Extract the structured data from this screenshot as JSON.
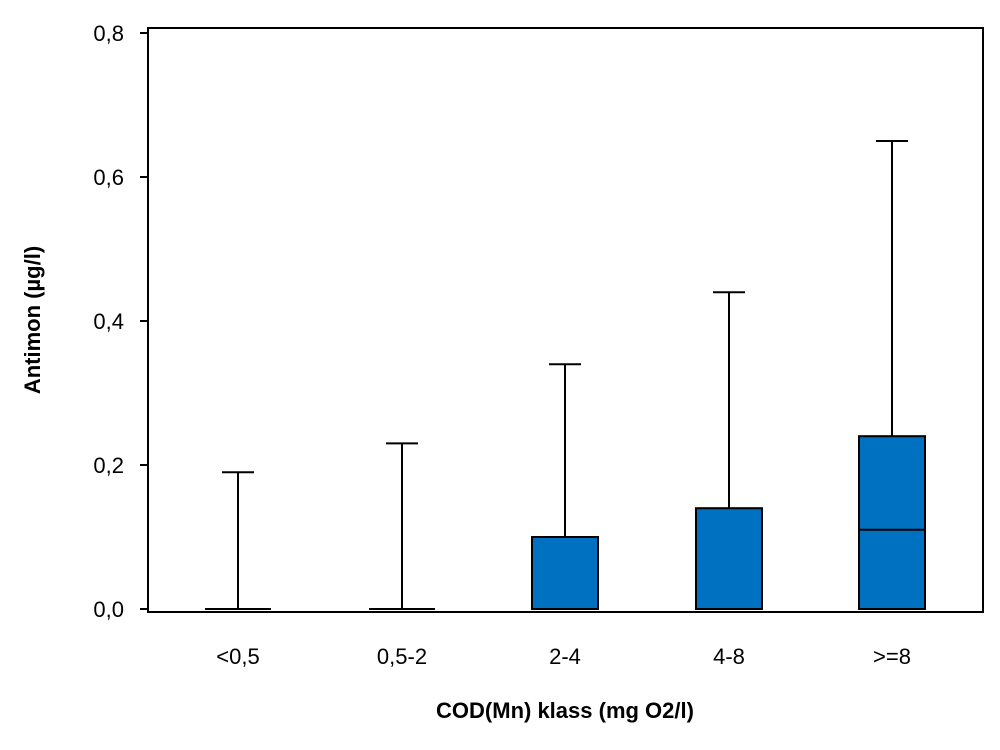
{
  "chart_data": {
    "type": "boxplot",
    "xlabel": "COD(Mn) klass (mg O2/l)",
    "ylabel": "Antimon (µg/l)",
    "ylim": [
      0,
      0.8
    ],
    "yticks": [
      0.0,
      0.2,
      0.4,
      0.6,
      0.8
    ],
    "ytick_labels": [
      "0,0",
      "0,2",
      "0,4",
      "0,6",
      "0,8"
    ],
    "categories": [
      "<0,5",
      "0,5-2",
      "2-4",
      "4-8",
      ">=8"
    ],
    "boxes": [
      {
        "category": "<0,5",
        "min": 0,
        "q1": 0,
        "median": 0,
        "q3": 0,
        "max": 0.19
      },
      {
        "category": "0,5-2",
        "min": 0,
        "q1": 0,
        "median": 0,
        "q3": 0,
        "max": 0.23
      },
      {
        "category": "2-4",
        "min": 0,
        "q1": 0,
        "median": 0,
        "q3": 0.1,
        "max": 0.34
      },
      {
        "category": "4-8",
        "min": 0,
        "q1": 0,
        "median": 0,
        "q3": 0.14,
        "max": 0.44
      },
      {
        "category": ">=8",
        "min": 0,
        "q1": 0,
        "median": 0.11,
        "q3": 0.24,
        "max": 0.65
      }
    ],
    "box_color": "#0070C0",
    "grid": false,
    "legend": "none"
  }
}
